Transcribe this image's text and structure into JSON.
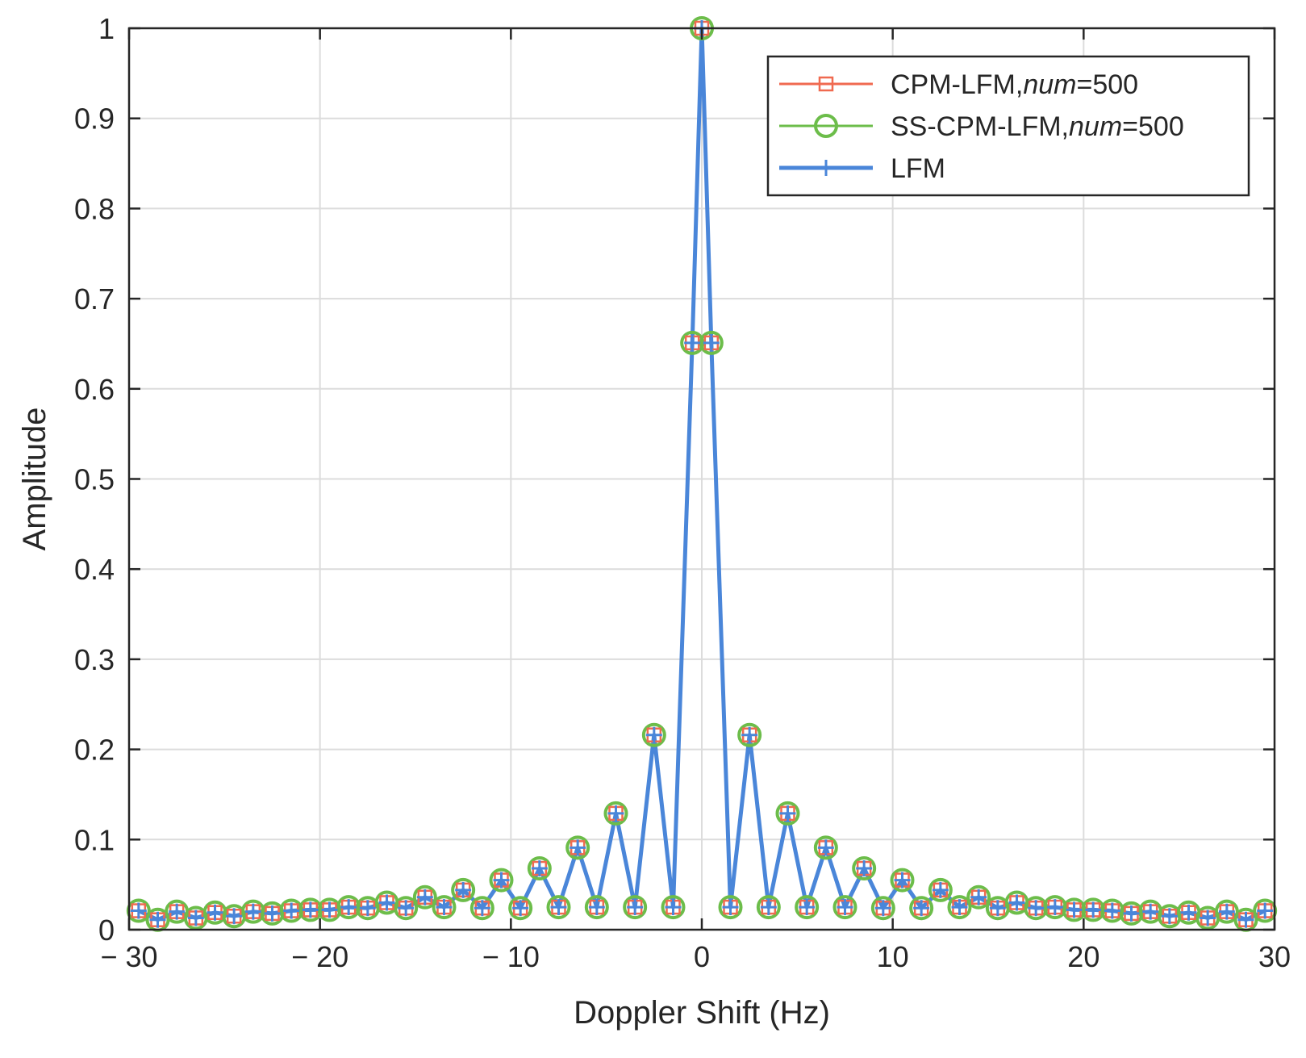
{
  "chart_data": {
    "type": "line",
    "xlabel": "Doppler Shift (Hz)",
    "ylabel": "Amplitude",
    "xlim": [
      -30,
      30
    ],
    "ylim": [
      0,
      1
    ],
    "xticks": [
      -30,
      -20,
      -10,
      0,
      10,
      20,
      30
    ],
    "xtick_labels": [
      "− 30",
      "− 20",
      "− 10",
      "0",
      "10",
      "20",
      "30"
    ],
    "yticks": [
      0,
      0.1,
      0.2,
      0.3,
      0.4,
      0.5,
      0.6,
      0.7,
      0.8,
      0.9,
      1
    ],
    "ytick_labels": [
      "0",
      "0.1",
      "0.2",
      "0.3",
      "0.4",
      "0.5",
      "0.6",
      "0.7",
      "0.8",
      "0.9",
      "1"
    ],
    "grid": true,
    "legend_position": "top-right",
    "x": [
      -29.5,
      -28.5,
      -27.5,
      -26.5,
      -25.5,
      -24.5,
      -23.5,
      -22.5,
      -21.5,
      -20.5,
      -19.5,
      -18.5,
      -17.5,
      -16.5,
      -15.5,
      -14.5,
      -13.5,
      -12.5,
      -11.5,
      -10.5,
      -9.5,
      -8.5,
      -7.5,
      -6.5,
      -5.5,
      -4.5,
      -3.5,
      -2.5,
      -1.5,
      -0.5,
      0,
      0.5,
      1.5,
      2.5,
      3.5,
      4.5,
      5.5,
      6.5,
      7.5,
      8.5,
      9.5,
      10.5,
      11.5,
      12.5,
      13.5,
      14.5,
      15.5,
      16.5,
      17.5,
      18.5,
      19.5,
      20.5,
      21.5,
      22.5,
      23.5,
      24.5,
      25.5,
      26.5,
      27.5,
      28.5,
      29.5
    ],
    "series": [
      {
        "name": "CPM-LFM,num=500",
        "name_parts": [
          "CPM-LFM,",
          "num",
          "=500"
        ],
        "color": "#f06a50",
        "marker": "square",
        "values": [
          0.021,
          0.011,
          0.02,
          0.013,
          0.019,
          0.015,
          0.02,
          0.018,
          0.021,
          0.022,
          0.022,
          0.025,
          0.024,
          0.03,
          0.024,
          0.036,
          0.025,
          0.044,
          0.024,
          0.055,
          0.024,
          0.068,
          0.025,
          0.091,
          0.025,
          0.129,
          0.025,
          0.216,
          0.025,
          0.651,
          1.0,
          0.651,
          0.025,
          0.216,
          0.025,
          0.129,
          0.025,
          0.091,
          0.025,
          0.068,
          0.024,
          0.055,
          0.024,
          0.044,
          0.025,
          0.036,
          0.024,
          0.03,
          0.024,
          0.025,
          0.022,
          0.022,
          0.021,
          0.018,
          0.02,
          0.015,
          0.019,
          0.013,
          0.02,
          0.011,
          0.021
        ]
      },
      {
        "name": "SS-CPM-LFM,num=500",
        "name_parts": [
          "SS-CPM-LFM,",
          "num",
          "=500"
        ],
        "color": "#6cbd4a",
        "marker": "circle",
        "values": [
          0.021,
          0.011,
          0.02,
          0.013,
          0.019,
          0.015,
          0.02,
          0.018,
          0.021,
          0.022,
          0.022,
          0.025,
          0.024,
          0.03,
          0.024,
          0.036,
          0.025,
          0.044,
          0.024,
          0.055,
          0.024,
          0.068,
          0.025,
          0.091,
          0.025,
          0.129,
          0.025,
          0.216,
          0.025,
          0.651,
          1.0,
          0.651,
          0.025,
          0.216,
          0.025,
          0.129,
          0.025,
          0.091,
          0.025,
          0.068,
          0.024,
          0.055,
          0.024,
          0.044,
          0.025,
          0.036,
          0.024,
          0.03,
          0.024,
          0.025,
          0.022,
          0.022,
          0.021,
          0.018,
          0.02,
          0.015,
          0.019,
          0.013,
          0.02,
          0.011,
          0.021
        ]
      },
      {
        "name": "LFM",
        "name_parts": [
          "LFM",
          "",
          ""
        ],
        "color": "#4a86d9",
        "marker": "plus",
        "values": [
          0.021,
          0.011,
          0.02,
          0.013,
          0.019,
          0.015,
          0.02,
          0.018,
          0.021,
          0.022,
          0.022,
          0.025,
          0.024,
          0.03,
          0.024,
          0.036,
          0.025,
          0.044,
          0.024,
          0.055,
          0.024,
          0.068,
          0.025,
          0.091,
          0.025,
          0.129,
          0.025,
          0.216,
          0.025,
          0.651,
          1.0,
          0.651,
          0.025,
          0.216,
          0.025,
          0.129,
          0.025,
          0.091,
          0.025,
          0.068,
          0.024,
          0.055,
          0.024,
          0.044,
          0.025,
          0.036,
          0.024,
          0.03,
          0.024,
          0.025,
          0.022,
          0.022,
          0.021,
          0.018,
          0.02,
          0.015,
          0.019,
          0.013,
          0.02,
          0.011,
          0.021
        ]
      }
    ]
  }
}
